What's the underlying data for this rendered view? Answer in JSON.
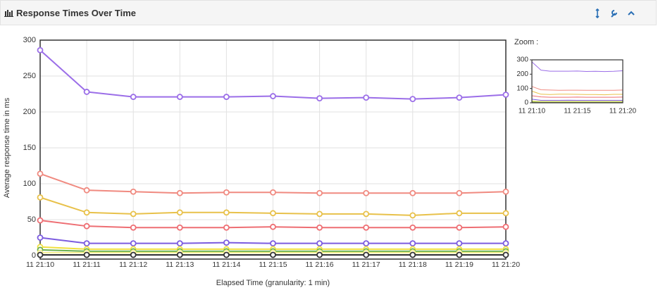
{
  "panel": {
    "title": "Response Times Over Time"
  },
  "chart_data": [
    {
      "type": "line",
      "x_label": "Elapsed Time (granularity: 1 min)",
      "y_label": "Average response time in ms",
      "categories": [
        "11 21:10",
        "11 21:11",
        "11 21:12",
        "11 21:13",
        "11 21:14",
        "11 21:15",
        "11 21:16",
        "11 21:17",
        "11 21:18",
        "11 21:19",
        "11 21:20"
      ],
      "ylim": [
        0,
        300
      ],
      "yticks": [
        0,
        50,
        100,
        150,
        200,
        250,
        300
      ],
      "grid": true,
      "series": [
        {
          "color": "#9b6ee8",
          "values": [
            286,
            228,
            221,
            221,
            221,
            222,
            219,
            220,
            218,
            220,
            224
          ]
        },
        {
          "color": "#f08a80",
          "values": [
            114,
            91,
            89,
            87,
            88,
            88,
            87,
            87,
            87,
            87,
            89
          ]
        },
        {
          "color": "#e8c14a",
          "values": [
            81,
            60,
            58,
            60,
            60,
            59,
            58,
            58,
            56,
            59,
            59
          ]
        },
        {
          "color": "#ee6e73",
          "values": [
            49,
            41,
            39,
            39,
            39,
            40,
            39,
            39,
            39,
            39,
            40
          ]
        },
        {
          "color": "#7c5ce0",
          "values": [
            25,
            17,
            17,
            17,
            18,
            17,
            17,
            17,
            17,
            17,
            17
          ]
        },
        {
          "color": "#f0e040",
          "values": [
            12,
            9,
            9,
            9,
            9,
            9,
            9,
            9,
            9,
            9,
            9
          ]
        },
        {
          "color": "#6ab04c",
          "values": [
            8,
            6,
            6,
            6,
            6,
            6,
            6,
            6,
            6,
            6,
            6
          ]
        },
        {
          "color": "#f5ee90",
          "values": [
            4,
            4,
            4,
            4,
            4,
            4,
            4,
            4,
            4,
            4,
            4
          ]
        },
        {
          "color": "#333333",
          "values": [
            1,
            1,
            1,
            1,
            1,
            1,
            1,
            1,
            1,
            1,
            1
          ]
        }
      ]
    },
    {
      "type": "zoom",
      "title": "Zoom :",
      "categories": [
        "11 21:10",
        null,
        null,
        null,
        null,
        "11 21:15",
        null,
        null,
        null,
        null,
        "11 21:20"
      ],
      "ylim": [
        0,
        300
      ],
      "yticks": [
        0,
        100,
        200,
        300
      ]
    }
  ]
}
